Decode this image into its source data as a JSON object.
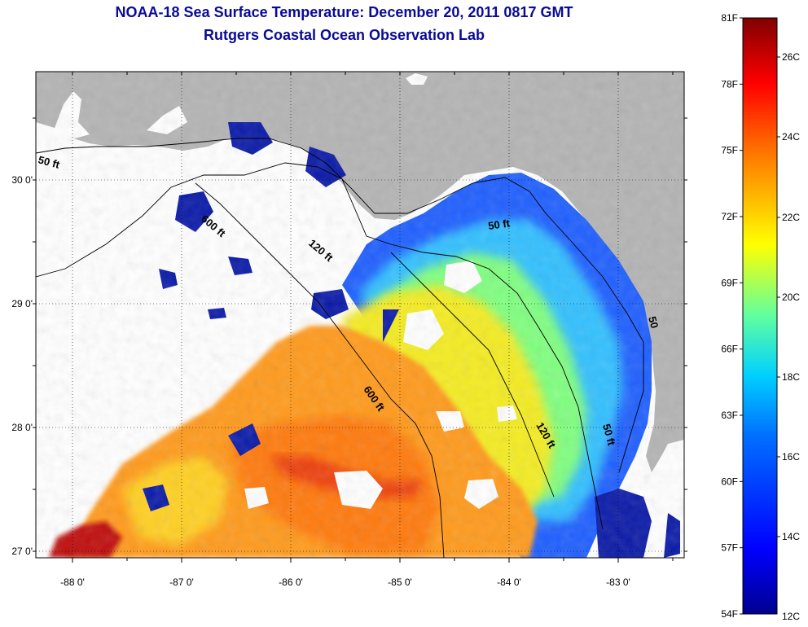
{
  "title": "NOAA-18 Sea Surface Temperature:  December 20, 2011 0817 GMT",
  "subtitle": "Rutgers Coastal Ocean Observation Lab",
  "map": {
    "lon_ticks": [
      {
        "value": -88,
        "label": "-88 0'"
      },
      {
        "value": -87,
        "label": "-87 0'"
      },
      {
        "value": -86,
        "label": "-86 0'"
      },
      {
        "value": -85,
        "label": "-85 0'"
      },
      {
        "value": -84,
        "label": "-84 0'"
      },
      {
        "value": -83,
        "label": "-83 0'"
      }
    ],
    "lat_ticks": [
      {
        "value": 27,
        "label": "27 0'"
      },
      {
        "value": 28,
        "label": "28 0'"
      },
      {
        "value": 29,
        "label": "29 0'"
      },
      {
        "value": 30,
        "label": "30 0'"
      }
    ],
    "contour_labels": [
      "50 ft",
      "600 ft",
      "120 ft",
      "50 ft",
      "600 ft",
      "120 ft",
      "50 ft",
      "50"
    ],
    "colors": {
      "land": "#b4b4b4",
      "no_data": "#ffffff",
      "grid": "#000000"
    }
  },
  "colorbar": {
    "fahrenheit": [
      "81F",
      "78F",
      "75F",
      "72F",
      "69F",
      "66F",
      "63F",
      "60F",
      "57F",
      "54F"
    ],
    "celsius": [
      "26C",
      "24C",
      "22C",
      "20C",
      "18C",
      "16C",
      "14C",
      "12C"
    ],
    "colormap": [
      "#00008f",
      "#0000ff",
      "#0080ff",
      "#00ffff",
      "#80ff80",
      "#ffff00",
      "#ff8000",
      "#ff0000",
      "#800000"
    ]
  }
}
